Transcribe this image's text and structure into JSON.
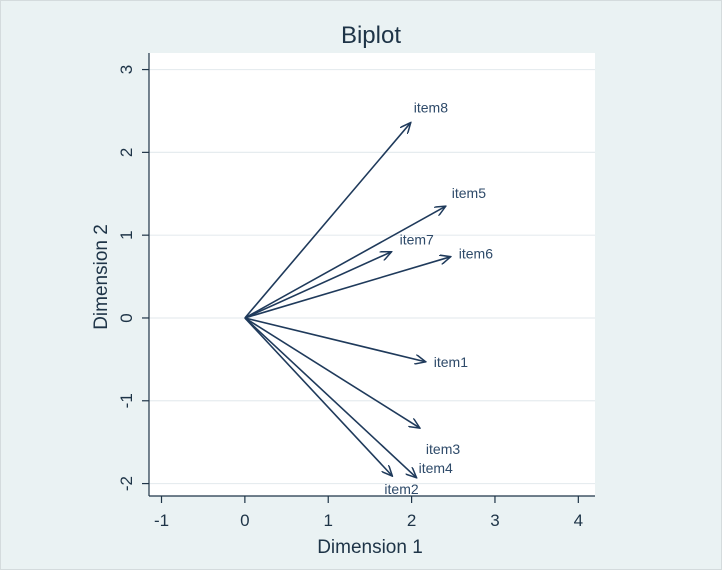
{
  "chart_data": {
    "type": "biplot",
    "title": "Biplot",
    "xlabel": "Dimension 1",
    "ylabel": "Dimension 2",
    "xlim": [
      -1.15,
      4.2
    ],
    "ylim": [
      -2.15,
      3.2
    ],
    "xticks": [
      -1,
      0,
      1,
      2,
      3,
      4
    ],
    "yticks": [
      -2,
      -1,
      0,
      1,
      2,
      3
    ],
    "grid": true,
    "origin": [
      0,
      0
    ],
    "vectors": [
      {
        "name": "item8",
        "x": 1.99,
        "y": 2.36
      },
      {
        "name": "item5",
        "x": 2.41,
        "y": 1.35
      },
      {
        "name": "item7",
        "x": 1.76,
        "y": 0.8
      },
      {
        "name": "item6",
        "x": 2.47,
        "y": 0.74
      },
      {
        "name": "item1",
        "x": 2.17,
        "y": -0.53
      },
      {
        "name": "item3",
        "x": 2.1,
        "y": -1.33
      },
      {
        "name": "item4",
        "x": 2.06,
        "y": -1.93
      },
      {
        "name": "item2",
        "x": 1.77,
        "y": -1.91
      }
    ]
  },
  "colors": {
    "panel_background": "#eaf2f3",
    "plot_background": "#ffffff",
    "vector": "#1f3a5b",
    "grid": "#e6ecef"
  }
}
